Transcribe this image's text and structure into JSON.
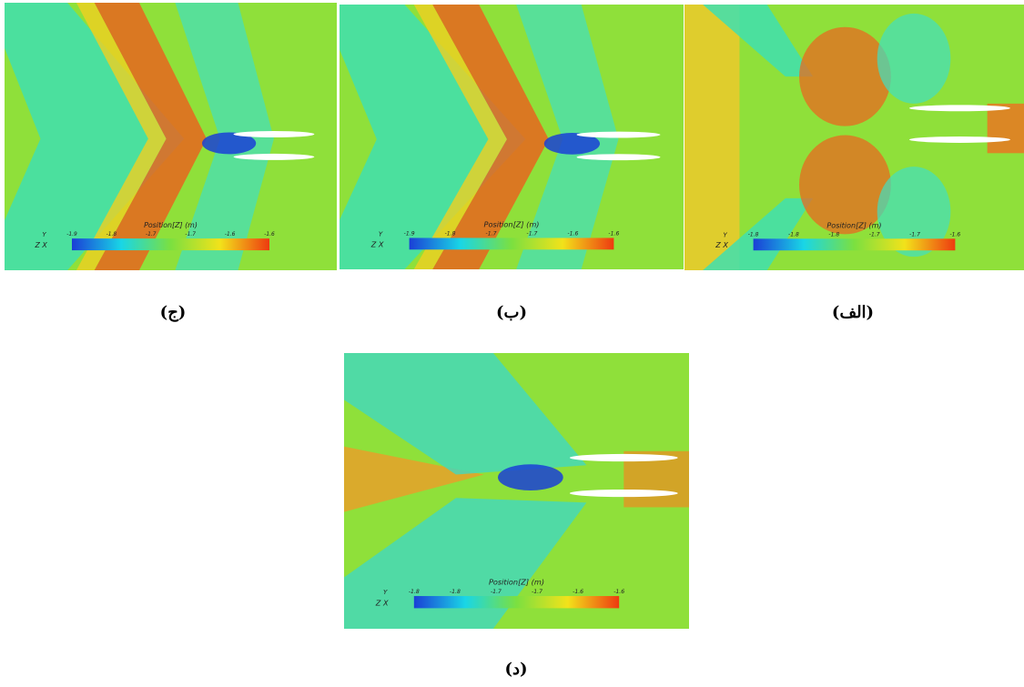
{
  "figure": {
    "panels": [
      {
        "caption": "(ج)",
        "colorbar_title": "Position[Z] (m)",
        "colorbar_ticks": [
          "-1.9",
          "-1.8",
          "-1.7",
          "-1.7",
          "-1.6",
          "-1.6"
        ],
        "axis_y": "Y",
        "axis_zx": "Z X"
      },
      {
        "caption": "(ب)",
        "colorbar_title": "Position[Z] (m)",
        "colorbar_ticks": [
          "-1.9",
          "-1.8",
          "-1.7",
          "-1.7",
          "-1.6",
          "-1.6"
        ],
        "axis_y": "Y",
        "axis_zx": "Z X"
      },
      {
        "caption": "(الف)",
        "colorbar_title": "Position[Z] (m)",
        "colorbar_ticks": [
          "-1.8",
          "-1.8",
          "-1.8",
          "-1.7",
          "-1.7",
          "-1.6"
        ],
        "axis_y": "Y",
        "axis_zx": "Z X"
      },
      {
        "caption": "(د)",
        "colorbar_title": "Position[Z] (m)",
        "colorbar_ticks": [
          "-1.8",
          "-1.8",
          "-1.7",
          "-1.7",
          "-1.6",
          "-1.6"
        ],
        "axis_y": "Y",
        "axis_zx": "Z X"
      }
    ]
  }
}
